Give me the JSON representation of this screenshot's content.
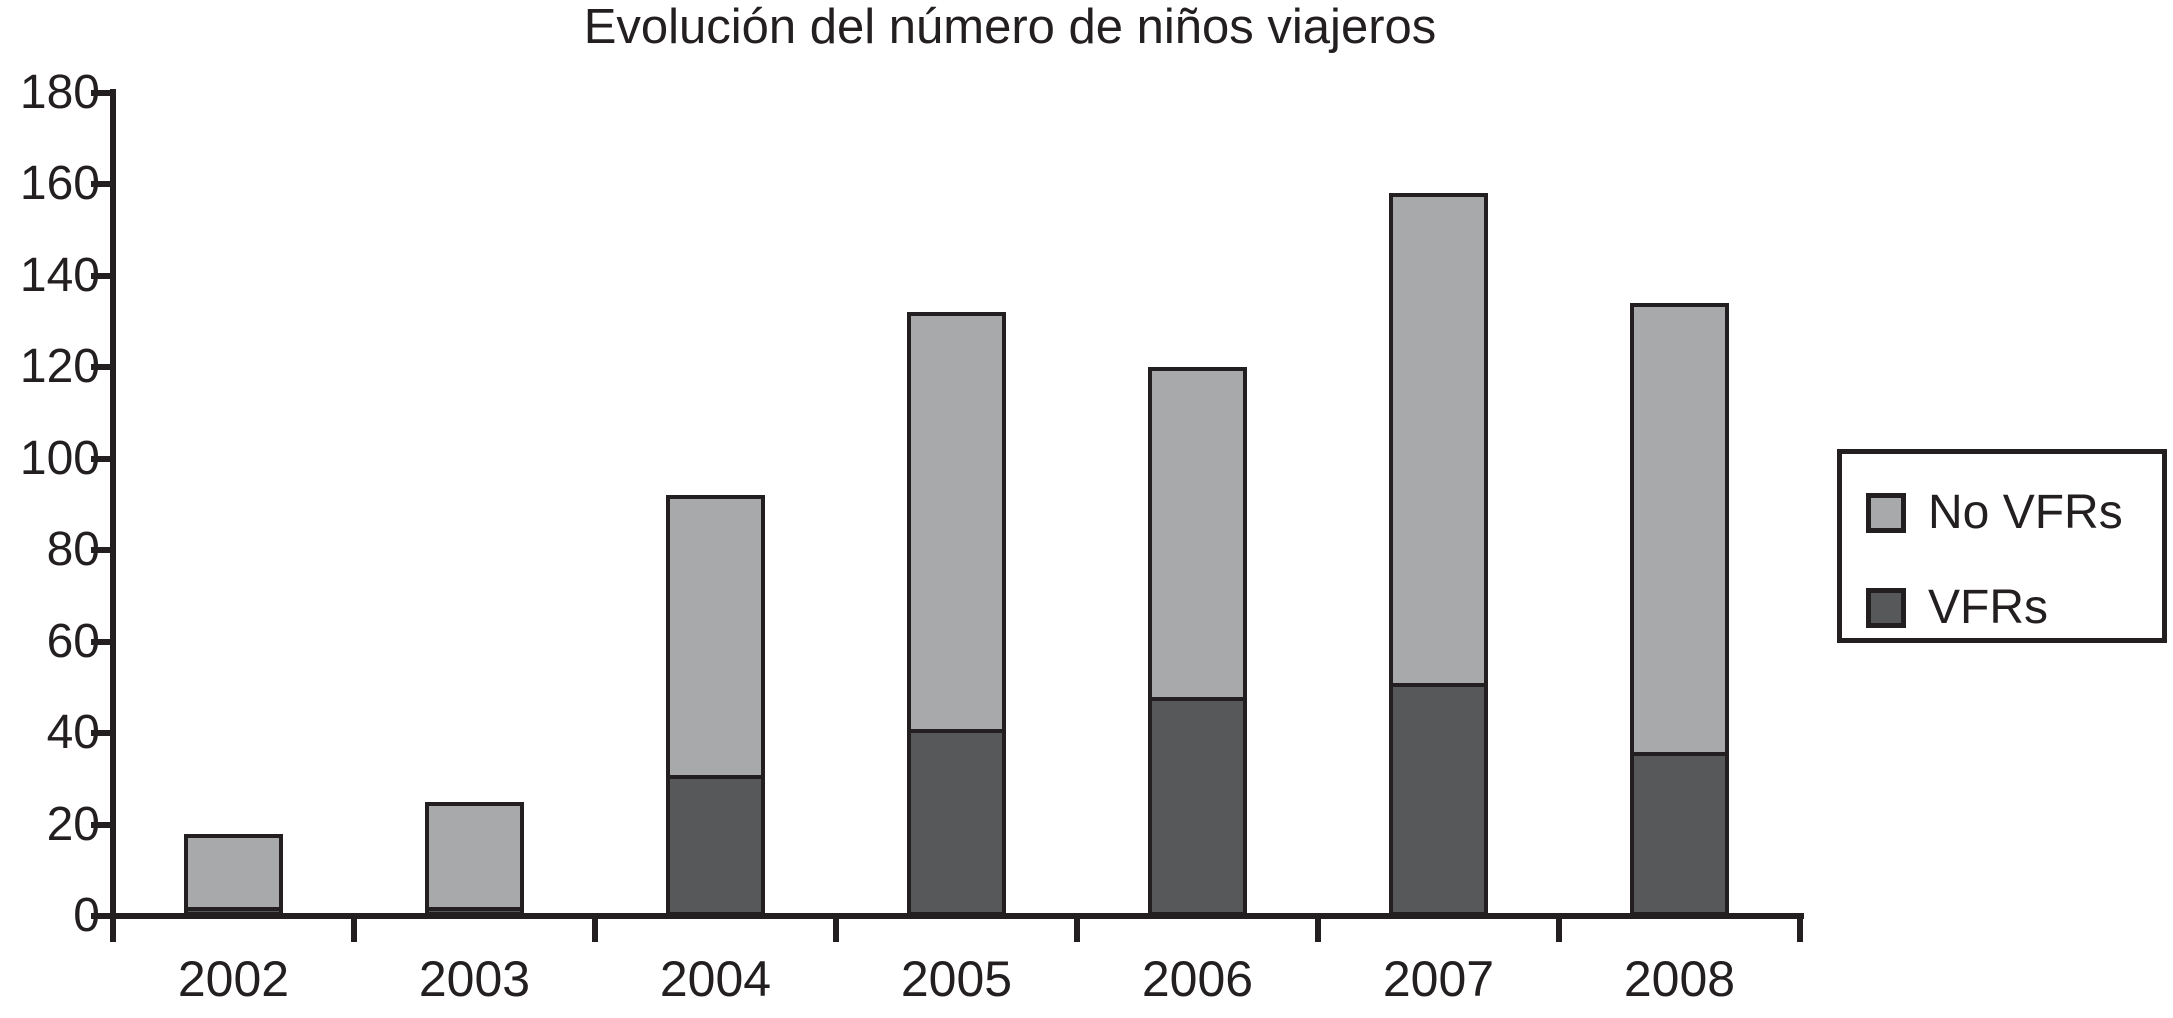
{
  "title": "Evolución del número de niños viajeros",
  "colors": {
    "no_vfrs_fill": "#a7a9ab",
    "vfrs_fill": "#56585a",
    "axis_and_border": "#231f20",
    "background": "#ffffff"
  },
  "chart_data": {
    "type": "bar",
    "stacked": true,
    "title": "Evolución del número de niños viajeros",
    "categories": [
      "2002",
      "2003",
      "2004",
      "2005",
      "2006",
      "2007",
      "2008"
    ],
    "series": [
      {
        "name": "VFRs",
        "color": "#56585a",
        "values": [
          1,
          1,
          30,
          40,
          47,
          50,
          35
        ]
      },
      {
        "name": "No VFRs",
        "color": "#a7a9ab",
        "values": [
          17,
          24,
          62,
          92,
          73,
          108,
          99
        ]
      }
    ],
    "stacked_totals": [
      18,
      25,
      92,
      132,
      120,
      158,
      134
    ],
    "xlabel": "",
    "ylabel": "",
    "ylim": [
      0,
      180
    ],
    "ytick_step": 20,
    "yticks": [
      "180",
      "160",
      "140",
      "120",
      "100",
      "80",
      "60",
      "40",
      "20",
      "0"
    ],
    "grid": false,
    "legend_position": "right",
    "legend": [
      {
        "label": "No VFRs",
        "color": "#a7a9ab"
      },
      {
        "label": "VFRs",
        "color": "#56585a"
      }
    ]
  }
}
